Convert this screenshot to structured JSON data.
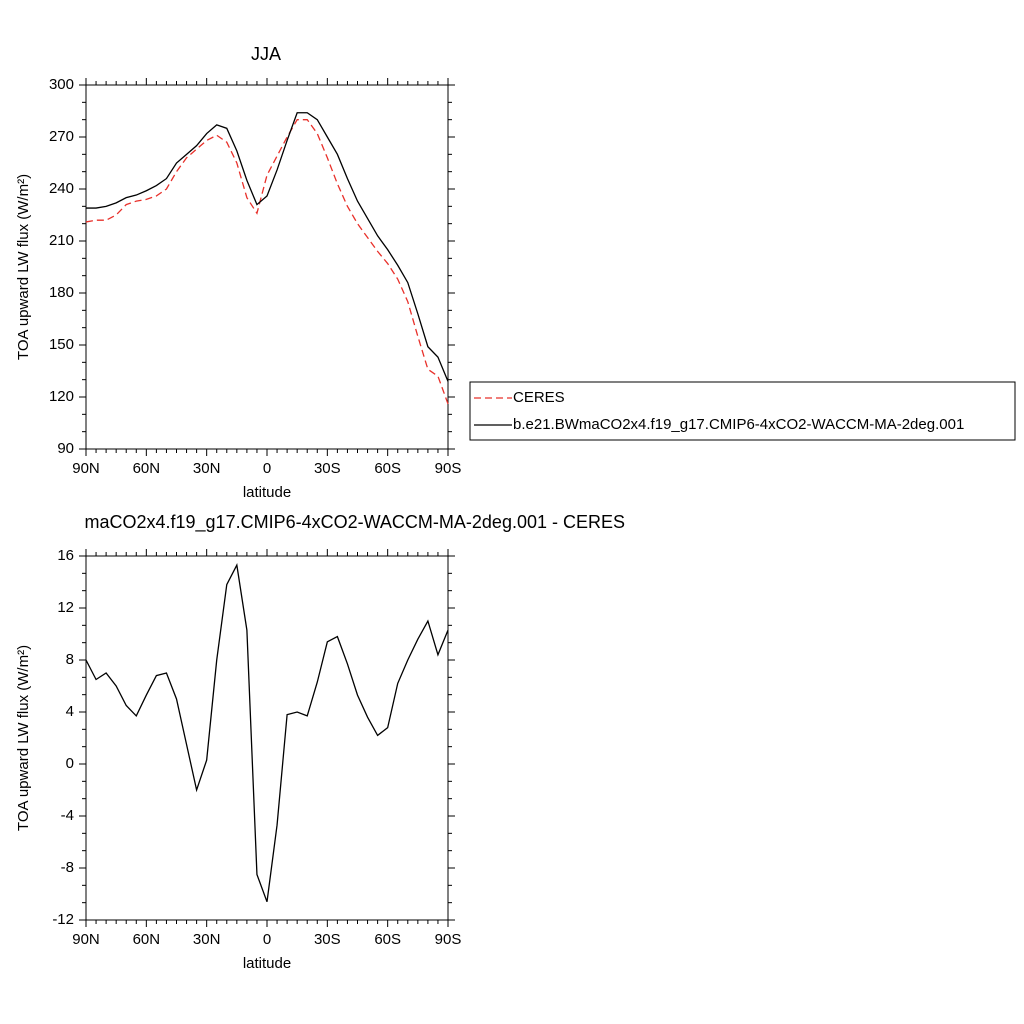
{
  "chart_data": [
    {
      "type": "line",
      "title": "JJA",
      "xlabel": "latitude",
      "ylabel": "TOA upward LW flux (W/m²)",
      "x": [
        90,
        85,
        80,
        75,
        70,
        65,
        60,
        55,
        50,
        45,
        40,
        35,
        30,
        25,
        20,
        15,
        10,
        5,
        0,
        -5,
        -10,
        -15,
        -20,
        -25,
        -30,
        -35,
        -40,
        -45,
        -50,
        -55,
        -60,
        -65,
        -70,
        -75,
        -80,
        -85,
        -90
      ],
      "xlim": [
        90,
        -90
      ],
      "xticks": [
        {
          "value": 90,
          "label": "90N"
        },
        {
          "value": 60,
          "label": "60N"
        },
        {
          "value": 30,
          "label": "30N"
        },
        0,
        {
          "value": -30,
          "label": "30S"
        },
        {
          "value": -60,
          "label": "60S"
        },
        {
          "value": -90,
          "label": "90S"
        }
      ],
      "ylim": [
        90,
        300
      ],
      "yticks": [
        90,
        120,
        150,
        180,
        210,
        240,
        270,
        300
      ],
      "legend": "right",
      "series": [
        {
          "name": "CERES",
          "color": "#e8302a",
          "linestyle": "dashed",
          "values": [
            221,
            222,
            222,
            225,
            231,
            233,
            234,
            236,
            240,
            250,
            258,
            263,
            268,
            271,
            267,
            255,
            235,
            226,
            248,
            259,
            270,
            280,
            280,
            272,
            258,
            243,
            230,
            220,
            212,
            204,
            197,
            188,
            175,
            155,
            136,
            132,
            116
          ]
        },
        {
          "name": "b.e21.BWmaCO2x4.f19_g17.CMIP6-4xCO2-WACCM-MA-2deg.001",
          "color": "#000000",
          "linestyle": "solid",
          "values": [
            229,
            229,
            230,
            232,
            235,
            236.5,
            239,
            242,
            246,
            255,
            260,
            265,
            272,
            277,
            275,
            262,
            245,
            231,
            236,
            251,
            268,
            284,
            284,
            280,
            270,
            260,
            246,
            233,
            223,
            213,
            205,
            196,
            186,
            168,
            149,
            143,
            129
          ]
        }
      ]
    },
    {
      "type": "line",
      "title": "maCO2x4.f19_g17.CMIP6-4xCO2-WACCM-MA-2deg.001 - CERES",
      "xlabel": "latitude",
      "ylabel": "TOA upward LW flux (W/m²)",
      "x": [
        90,
        85,
        80,
        75,
        70,
        65,
        60,
        55,
        50,
        45,
        40,
        35,
        30,
        25,
        20,
        15,
        10,
        5,
        0,
        -5,
        -10,
        -15,
        -20,
        -25,
        -30,
        -35,
        -40,
        -45,
        -50,
        -55,
        -60,
        -65,
        -70,
        -75,
        -80,
        -85,
        -90
      ],
      "xlim": [
        90,
        -90
      ],
      "xticks": [
        {
          "value": 90,
          "label": "90N"
        },
        {
          "value": 60,
          "label": "60N"
        },
        {
          "value": 30,
          "label": "30N"
        },
        0,
        {
          "value": -30,
          "label": "30S"
        },
        {
          "value": -60,
          "label": "60S"
        },
        {
          "value": -90,
          "label": "90S"
        }
      ],
      "ylim": [
        -12,
        16
      ],
      "yticks": [
        -12,
        -8,
        -4,
        0,
        4,
        8,
        12,
        16
      ],
      "series": [
        {
          "color": "#000000",
          "linestyle": "solid",
          "values": [
            8,
            6.5,
            7,
            6,
            4.5,
            3.7,
            5.3,
            6.8,
            7,
            5,
            1.5,
            -2,
            0.3,
            8,
            13.8,
            15.3,
            10.3,
            -8.5,
            -10.6,
            -4.7,
            3.8,
            4,
            3.7,
            6.3,
            9.4,
            9.8,
            7.7,
            5.3,
            3.6,
            2.2,
            2.8,
            6.2,
            8,
            9.6,
            11,
            8.4,
            10.3
          ]
        }
      ]
    }
  ]
}
